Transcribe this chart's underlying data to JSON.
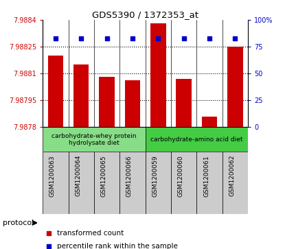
{
  "title": "GDS5390 / 1372353_at",
  "samples": [
    "GSM1200063",
    "GSM1200064",
    "GSM1200065",
    "GSM1200066",
    "GSM1200059",
    "GSM1200060",
    "GSM1200061",
    "GSM1200062"
  ],
  "red_values": [
    7.9882,
    7.98815,
    7.98808,
    7.98806,
    7.98838,
    7.98807,
    7.98786,
    7.98825
  ],
  "blue_values": [
    83,
    83,
    83,
    83,
    83,
    83,
    83,
    83
  ],
  "ylim_left": [
    7.9878,
    7.9884
  ],
  "ylim_right": [
    0,
    100
  ],
  "yticks_left": [
    7.9878,
    7.98795,
    7.9881,
    7.98825,
    7.9884
  ],
  "ytick_labels_left": [
    "7.9878",
    "7.98795",
    "7.9881",
    "7.98825",
    "7.9884"
  ],
  "yticks_right": [
    0,
    25,
    50,
    75,
    100
  ],
  "ytick_labels_right": [
    "0",
    "25",
    "50",
    "75",
    "100%"
  ],
  "bar_color": "#cc0000",
  "dot_color": "#0000cc",
  "protocol_groups": [
    {
      "label": "carbohydrate-whey protein\nhydrolysate diet",
      "start": 0,
      "end": 4,
      "color": "#88dd88"
    },
    {
      "label": "carbohydrate-amino acid diet",
      "start": 4,
      "end": 8,
      "color": "#44cc44"
    }
  ],
  "legend_items": [
    {
      "color": "#cc0000",
      "label": "transformed count"
    },
    {
      "color": "#0000cc",
      "label": "percentile rank within the sample"
    }
  ],
  "protocol_label": "protocol",
  "sample_bg_color": "#cccccc",
  "left_tick_color": "#cc0000",
  "right_tick_color": "#0000cc",
  "bar_width": 0.6
}
